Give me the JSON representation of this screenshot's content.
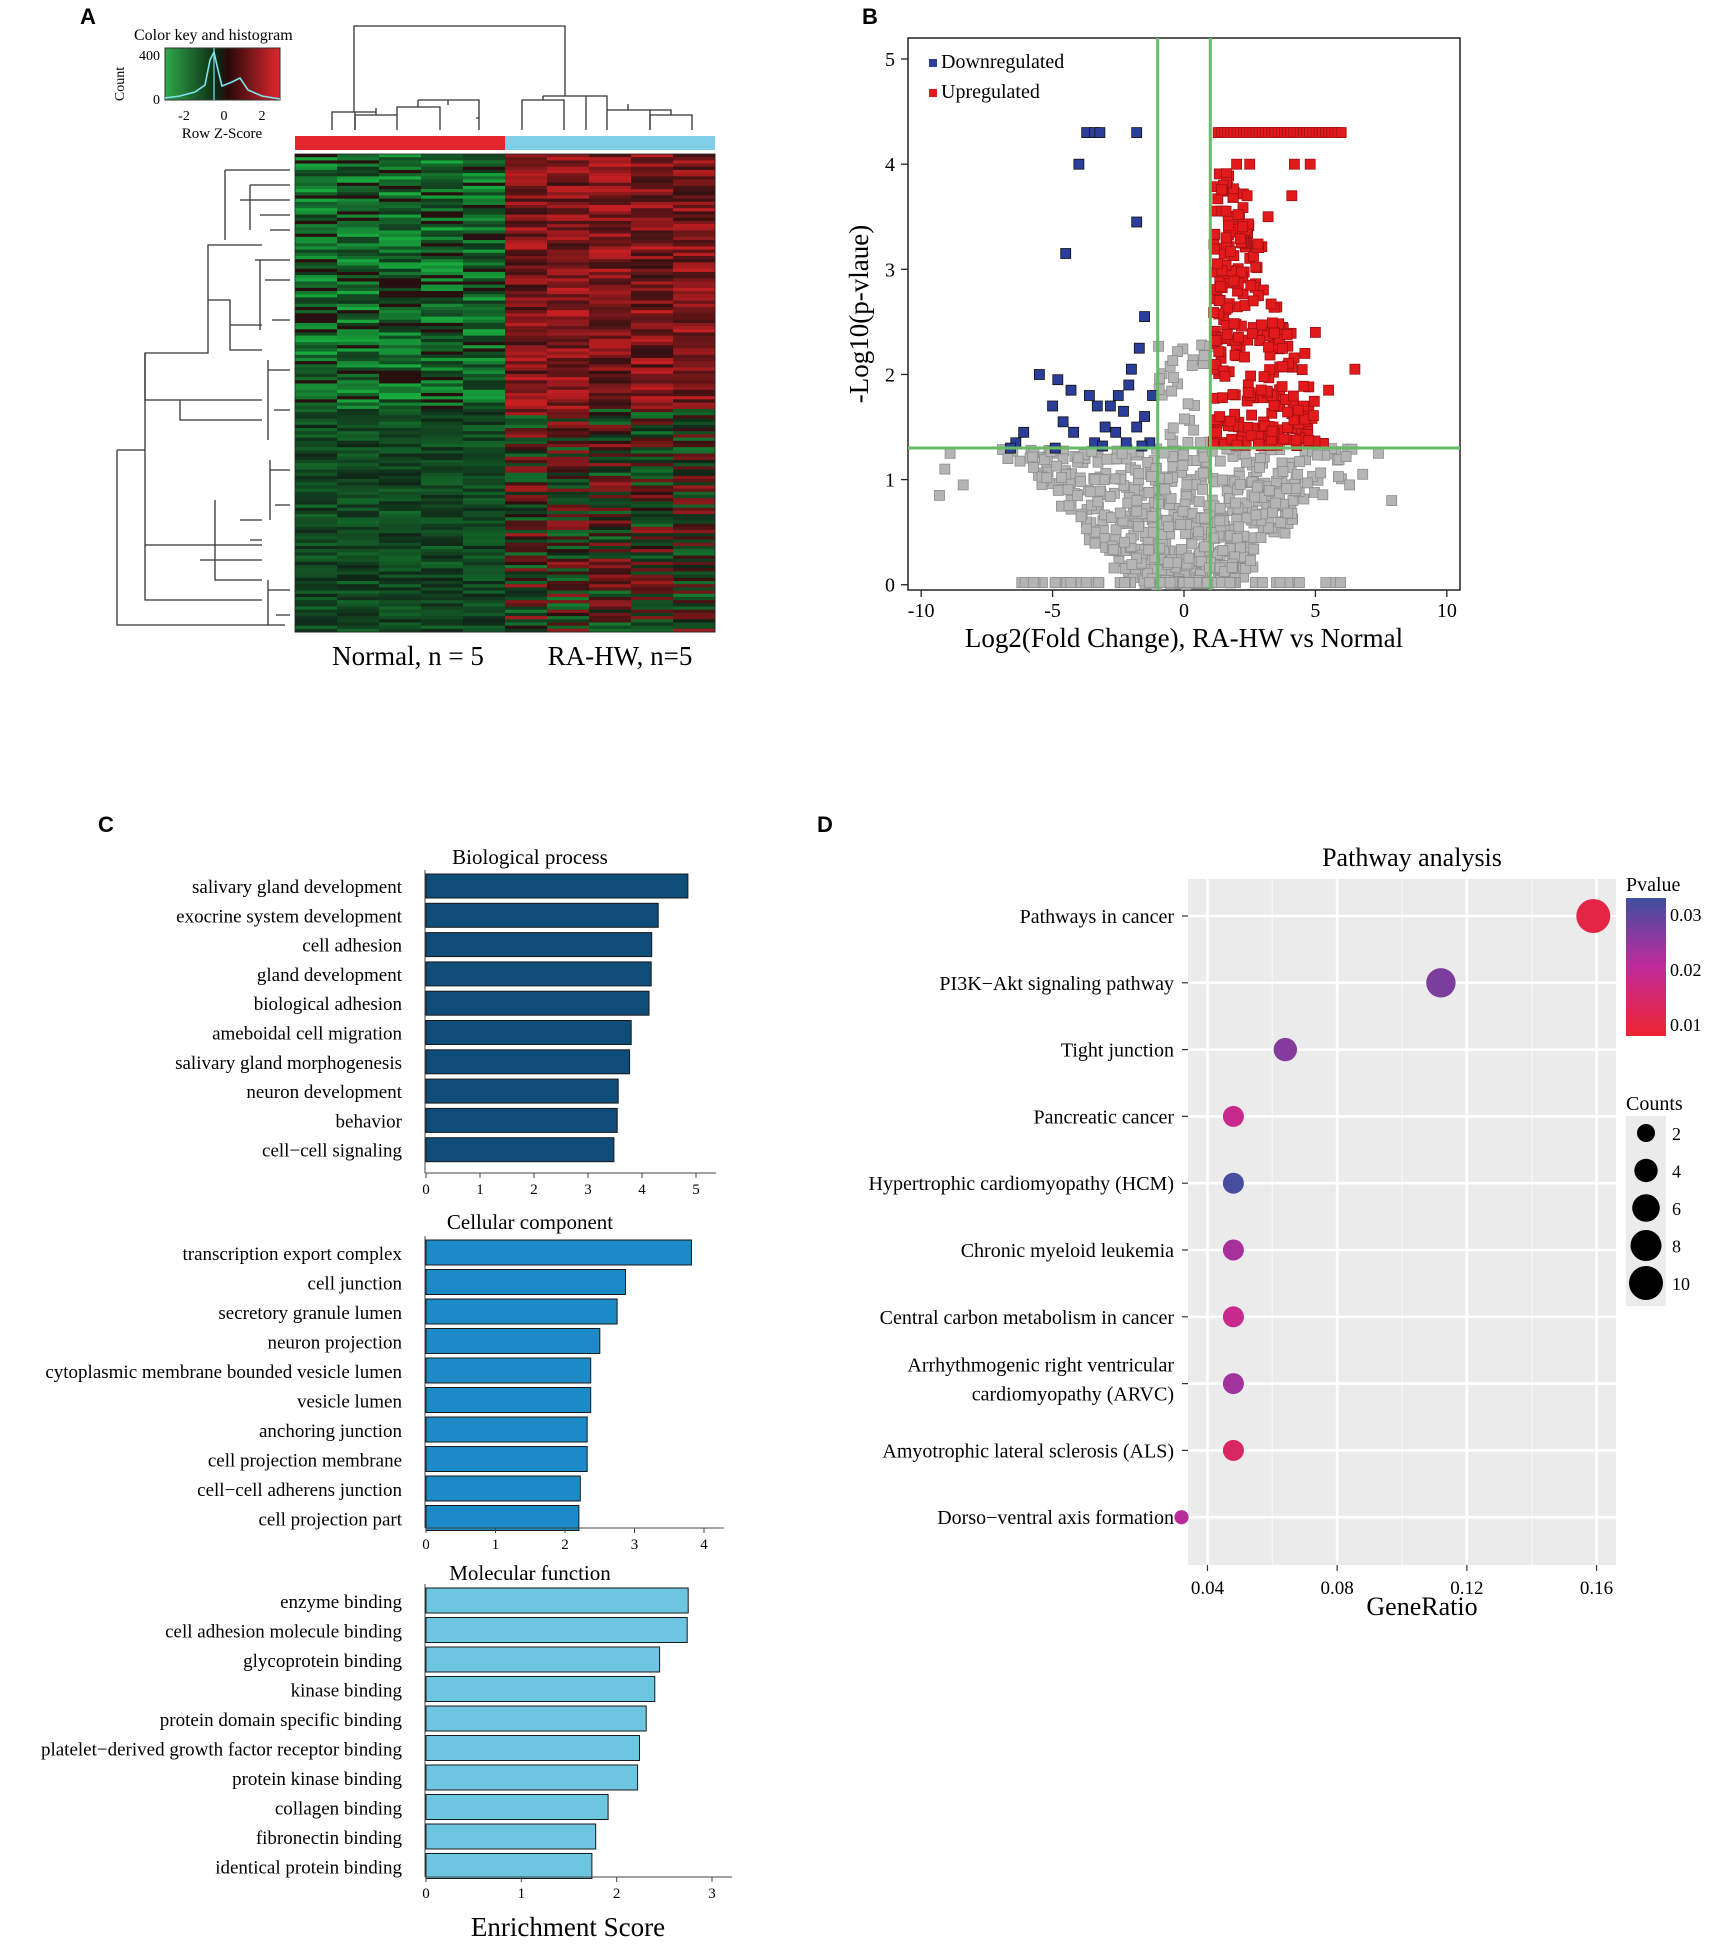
{
  "panels": {
    "a": "A",
    "b": "B",
    "c": "C",
    "d": "D"
  },
  "colors": {
    "heat_green": "#1f9c3f",
    "heat_red": "#e2262c",
    "heat_black": "#111111",
    "normal_bar": "#e4262c",
    "ra_bar": "#7fd0e6",
    "down": "#2b3f9a",
    "up": "#e31a1c",
    "ns": "#b4b4b4",
    "threshold": "#66bb66",
    "bp": "#0e4c79",
    "cc": "#1b8ac6",
    "mf": "#6cc6df",
    "p_low": "#ee2430",
    "p_mid": "#c12a9a",
    "p_high": "#3f4fa0"
  },
  "chart_data": [
    {
      "id": "A",
      "type": "heatmap",
      "color_key": {
        "title": "Color key and histogram",
        "ylabel": "Count",
        "yticks": [
          "400",
          "0"
        ],
        "xticks": [
          "-2",
          "0",
          "2"
        ],
        "xlabel": "Row Z-Score"
      },
      "groups": [
        {
          "label": "Normal, n = 5",
          "n": 5
        },
        {
          "label": "RA-HW, n=5",
          "n": 5
        }
      ]
    },
    {
      "id": "B",
      "type": "scatter",
      "xlabel": "Log2(Fold Change), RA-HW vs Normal",
      "ylabel": "-Log10(p-vlaue)",
      "xlim": [
        -10,
        10
      ],
      "ylim": [
        0,
        5
      ],
      "xticks": [
        "-10",
        "-5",
        "0",
        "5",
        "10"
      ],
      "yticks": [
        "0",
        "1",
        "2",
        "3",
        "4",
        "5"
      ],
      "thresholds": {
        "x": [
          -1,
          1
        ],
        "y": 1.3
      },
      "legend": [
        {
          "label": "Downregulated",
          "color": "#2b3f9a"
        },
        {
          "label": "Upregulated",
          "color": "#e31a1c"
        }
      ],
      "down_points": [
        [
          -3.7,
          4.3
        ],
        [
          -3.4,
          4.3
        ],
        [
          -3.2,
          4.3
        ],
        [
          -1.8,
          4.3
        ],
        [
          -4.0,
          4.0
        ],
        [
          -1.8,
          3.45
        ],
        [
          -4.5,
          3.15
        ],
        [
          -1.5,
          2.55
        ],
        [
          -1.7,
          2.25
        ],
        [
          -2.0,
          2.05
        ],
        [
          -5.5,
          2.0
        ],
        [
          -4.8,
          1.95
        ],
        [
          -2.1,
          1.9
        ],
        [
          -4.3,
          1.85
        ],
        [
          -3.6,
          1.8
        ],
        [
          -2.5,
          1.8
        ],
        [
          -1.2,
          1.8
        ],
        [
          -5.0,
          1.7
        ],
        [
          -3.3,
          1.7
        ],
        [
          -2.8,
          1.7
        ],
        [
          -2.3,
          1.65
        ],
        [
          -1.5,
          1.6
        ],
        [
          -4.6,
          1.55
        ],
        [
          -3.0,
          1.5
        ],
        [
          -1.8,
          1.5
        ],
        [
          -6.1,
          1.45
        ],
        [
          -4.2,
          1.45
        ],
        [
          -2.6,
          1.45
        ],
        [
          -6.4,
          1.35
        ],
        [
          -3.4,
          1.35
        ],
        [
          -2.2,
          1.35
        ],
        [
          -1.3,
          1.35
        ],
        [
          -3.1,
          1.32
        ],
        [
          -1.6,
          1.32
        ],
        [
          -6.6,
          1.3
        ],
        [
          -4.9,
          1.3
        ]
      ],
      "y_capped": 4.3,
      "up_capped_x_range": [
        1.3,
        6.1
      ]
    },
    {
      "id": "C",
      "type": "bar",
      "xlabel": "Enrichment Score",
      "panels": [
        {
          "title": "Biological process",
          "xticks": [
            "0",
            "1",
            "2",
            "3",
            "4",
            "5"
          ],
          "xmax": 5,
          "categories": [
            "salivary gland development",
            "exocrine system development",
            "cell adhesion",
            "gland development",
            "biological adhesion",
            "ameboidal cell migration",
            "salivary gland morphogenesis",
            "neuron development",
            "behavior",
            "cell−cell signaling"
          ],
          "values": [
            4.85,
            4.3,
            4.18,
            4.17,
            4.13,
            3.8,
            3.77,
            3.56,
            3.54,
            3.48
          ]
        },
        {
          "title": "Cellular component",
          "xticks": [
            "0",
            "1",
            "2",
            "3",
            "4"
          ],
          "xmax": 4,
          "categories": [
            "transcription export complex",
            "cell junction",
            "secretory granule lumen",
            "neuron projection",
            "cytoplasmic membrane bounded vesicle lumen",
            "vesicle lumen",
            "anchoring junction",
            "cell projection membrane",
            "cell−cell adherens junction",
            "cell projection part"
          ],
          "values": [
            3.82,
            2.87,
            2.75,
            2.5,
            2.37,
            2.37,
            2.32,
            2.32,
            2.22,
            2.2
          ]
        },
        {
          "title": "Molecular function",
          "xticks": [
            "0",
            "1",
            "2",
            "3"
          ],
          "xmax": 3,
          "categories": [
            "enzyme binding",
            "cell adhesion molecule binding",
            "glycoprotein binding",
            "kinase binding",
            "protein domain specific binding",
            "platelet−derived growth factor receptor binding",
            "protein kinase binding",
            "collagen binding",
            "fibronectin binding",
            "identical protein binding"
          ],
          "values": [
            2.75,
            2.74,
            2.45,
            2.4,
            2.31,
            2.24,
            2.22,
            1.91,
            1.78,
            1.74
          ]
        }
      ]
    },
    {
      "id": "D",
      "type": "scatter",
      "title": "Pathway analysis",
      "xlabel": "GeneRatio",
      "xlim": [
        0.034,
        0.166
      ],
      "xticks": [
        "0.04",
        "0.08",
        "0.12",
        "0.16"
      ],
      "categories": [
        "Pathways in cancer",
        "PI3K−Akt signaling pathway",
        "Tight junction",
        "Pancreatic cancer",
        "Hypertrophic cardiomyopathy (HCM)",
        "Chronic myeloid leukemia",
        "Central carbon metabolism in cancer",
        "Arrhythmogenic right ventricular cardiomyopathy (ARVC)",
        "Amyotrophic lateral sclerosis (ALS)",
        "Dorso−ventral axis formation"
      ],
      "category_lines": [
        [
          "Pathways in cancer"
        ],
        [
          "PI3K−Akt signaling pathway"
        ],
        [
          "Tight junction"
        ],
        [
          "Pancreatic cancer"
        ],
        [
          "Hypertrophic cardiomyopathy (HCM)"
        ],
        [
          "Chronic myeloid leukemia"
        ],
        [
          "Central carbon metabolism in cancer"
        ],
        [
          "Arrhythmogenic right ventricular",
          "cardiomyopathy (ARVC)"
        ],
        [
          "Amyotrophic lateral sclerosis (ALS)"
        ],
        [
          "Dorso−ventral axis formation"
        ]
      ],
      "gene_ratio": [
        0.159,
        0.112,
        0.064,
        0.048,
        0.048,
        0.048,
        0.048,
        0.048,
        0.048,
        0.032
      ],
      "counts": [
        10,
        7,
        4,
        3,
        3,
        3,
        3,
        3,
        3,
        1
      ],
      "pvalue": [
        0.008,
        0.028,
        0.027,
        0.018,
        0.034,
        0.023,
        0.018,
        0.024,
        0.012,
        0.021
      ],
      "legend_pvalue": {
        "title": "Pvalue",
        "ticks": [
          "0.03",
          "0.02",
          "0.01"
        ]
      },
      "legend_counts": {
        "title": "Counts",
        "values": [
          "2",
          "4",
          "6",
          "8",
          "10"
        ]
      }
    }
  ]
}
